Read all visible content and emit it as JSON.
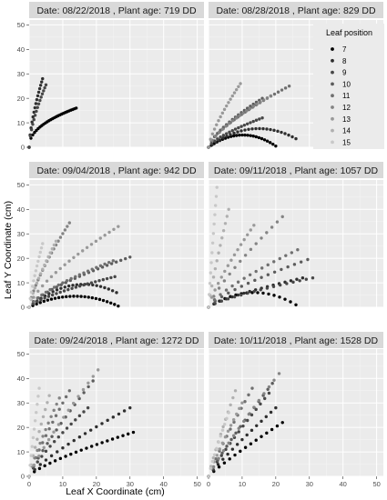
{
  "chart_data": {
    "type": "scatter",
    "layout": "facet-grid-3x2",
    "xlabel": "Leaf X Coordinate (cm)",
    "ylabel": "Leaf Y Coordinate (cm)",
    "xlim": [
      0,
      52
    ],
    "ylim": [
      0,
      52
    ],
    "x_ticks": [
      0,
      10,
      20,
      30,
      40,
      50
    ],
    "y_ticks": [
      0,
      10,
      20,
      30,
      40,
      50
    ],
    "grid": true,
    "legend": {
      "title": "Leaf position",
      "placement": "inside-top-right-of-panel-2",
      "entries": [
        {
          "label": "7",
          "color": "#000000"
        },
        {
          "label": "8",
          "color": "#2e2e2e"
        },
        {
          "label": "9",
          "color": "#474747"
        },
        {
          "label": "10",
          "color": "#5c5c5c"
        },
        {
          "label": "11",
          "color": "#707070"
        },
        {
          "label": "12",
          "color": "#848484"
        },
        {
          "label": "13",
          "color": "#999999"
        },
        {
          "label": "14",
          "color": "#b0b0b0"
        },
        {
          "label": "15",
          "color": "#c8c8c8"
        }
      ]
    },
    "panels": [
      {
        "title": "Date: 08/22/2018 , Plant age: 719 DD",
        "series": [
          {
            "name": "7",
            "end": [
              14,
              16
            ],
            "count": 26,
            "bend": 0.55
          },
          {
            "name": "8",
            "end": [
              4,
              28
            ],
            "count": 14,
            "bend": 0.35
          },
          {
            "name": "9",
            "end": [
              5,
              25.5
            ],
            "count": 14,
            "bend": 0.35
          }
        ]
      },
      {
        "title": "Date: 08/28/2018 , Plant age: 829 DD",
        "series": [
          {
            "name": "7",
            "end": [
              20,
              0.5
            ],
            "count": 24,
            "peak": 5
          },
          {
            "name": "8",
            "end": [
              26,
              3.5
            ],
            "count": 24,
            "peak": 7.5
          },
          {
            "name": "9",
            "end": [
              16,
              12
            ],
            "count": 18,
            "bend": 0.3
          },
          {
            "name": "10",
            "end": [
              16,
              20
            ],
            "count": 18,
            "bend": 0.3
          },
          {
            "name": "11",
            "end": [
              24,
              25
            ],
            "count": 22,
            "bend": 0.3
          },
          {
            "name": "12",
            "end": [
              18.5,
              21
            ],
            "count": 18,
            "bend": 0.3
          },
          {
            "name": "13",
            "end": [
              9.5,
              26
            ],
            "count": 16,
            "bend": 0.25
          }
        ]
      },
      {
        "title": "Date: 09/04/2018 , Plant age: 942 DD",
        "series": [
          {
            "name": "7",
            "end": [
              26.5,
              0.5
            ],
            "count": 24,
            "peak": 4.5
          },
          {
            "name": "8",
            "end": [
              26,
              6
            ],
            "count": 22,
            "peak": 9
          },
          {
            "name": "9",
            "end": [
              25.5,
              12.5
            ],
            "count": 22,
            "bend": 0.3
          },
          {
            "name": "10",
            "end": [
              30,
              20.5
            ],
            "count": 22,
            "bend": 0.3
          },
          {
            "name": "11",
            "end": [
              25,
              19
            ],
            "count": 20,
            "bend": 0.3
          },
          {
            "name": "12",
            "end": [
              12,
              34.5
            ],
            "count": 18,
            "bend": 0.25
          },
          {
            "name": "13",
            "end": [
              26.5,
              33
            ],
            "count": 20,
            "bend": 0.3
          },
          {
            "name": "14",
            "end": [
              8,
              27
            ],
            "count": 14,
            "bend": 0.2
          },
          {
            "name": "15",
            "end": [
              4,
              26
            ],
            "count": 12,
            "bend": 0.2
          }
        ]
      },
      {
        "title": "Date: 09/11/2018 , Plant age: 1057 DD",
        "series": [
          {
            "name": "7",
            "end": [
              26,
              1
            ],
            "count": 16,
            "peak": 6
          },
          {
            "name": "8",
            "end": [
              28,
              12
            ],
            "count": 16,
            "bend": 0.25
          },
          {
            "name": "9",
            "end": [
              31,
              12
            ],
            "count": 16,
            "bend": 0.25
          },
          {
            "name": "10",
            "end": [
              29.5,
              19.5
            ],
            "count": 15,
            "bend": 0.25
          },
          {
            "name": "11",
            "end": [
              26.5,
              23.5
            ],
            "count": 15,
            "bend": 0.25
          },
          {
            "name": "12",
            "end": [
              22,
              37
            ],
            "count": 14,
            "bend": 0.2
          },
          {
            "name": "13",
            "end": [
              13.5,
              33.5
            ],
            "count": 14,
            "bend": 0.2
          },
          {
            "name": "14",
            "end": [
              6,
              40
            ],
            "count": 12,
            "bend": 0.15
          },
          {
            "name": "15",
            "end": [
              2.5,
              49
            ],
            "count": 12,
            "bend": 0.1
          }
        ]
      },
      {
        "title": "Date: 09/24/2018 , Plant age: 1272 DD",
        "series": [
          {
            "name": "7",
            "end": [
              31,
              18
            ],
            "count": 20,
            "bend": 0.25
          },
          {
            "name": "8",
            "end": [
              30,
              28
            ],
            "count": 18,
            "bend": 0.2
          },
          {
            "name": "9",
            "end": [
              17.5,
              28
            ],
            "count": 14,
            "bend": 0.2
          },
          {
            "name": "10",
            "end": [
              19,
              39
            ],
            "count": 14,
            "bend": 0.15
          },
          {
            "name": "11",
            "end": [
              12,
              35
            ],
            "count": 12,
            "bend": 0.15
          },
          {
            "name": "12",
            "end": [
              9,
              32
            ],
            "count": 11,
            "bend": 0.15
          },
          {
            "name": "13",
            "end": [
              20.5,
              43.5
            ],
            "count": 14,
            "bend": 0.15
          },
          {
            "name": "14",
            "end": [
              6,
              33
            ],
            "count": 10,
            "bend": 0.15
          },
          {
            "name": "15",
            "end": [
              3,
              36
            ],
            "count": 10,
            "bend": 0.1
          }
        ]
      },
      {
        "title": "Date: 10/11/2018 , Plant age: 1528 DD",
        "series": [
          {
            "name": "7",
            "end": [
              22,
              22
            ],
            "count": 14,
            "bend": 0.1
          },
          {
            "name": "8",
            "end": [
              20,
              28
            ],
            "count": 14,
            "bend": 0.1
          },
          {
            "name": "9",
            "end": [
              18,
              34
            ],
            "count": 14,
            "bend": 0.1
          },
          {
            "name": "10",
            "end": [
              19,
              38
            ],
            "count": 14,
            "bend": 0.1
          },
          {
            "name": "11",
            "end": [
              13,
              36
            ],
            "count": 12,
            "bend": 0.1
          },
          {
            "name": "12",
            "end": [
              21,
              42
            ],
            "count": 14,
            "bend": 0.1
          },
          {
            "name": "13",
            "end": [
              10,
              30
            ],
            "count": 12,
            "bend": 0.1
          },
          {
            "name": "14",
            "end": [
              8,
              35
            ],
            "count": 11,
            "bend": 0.1
          },
          {
            "name": "15",
            "end": [
              6,
              26
            ],
            "count": 10,
            "bend": 0.1
          }
        ]
      }
    ]
  }
}
